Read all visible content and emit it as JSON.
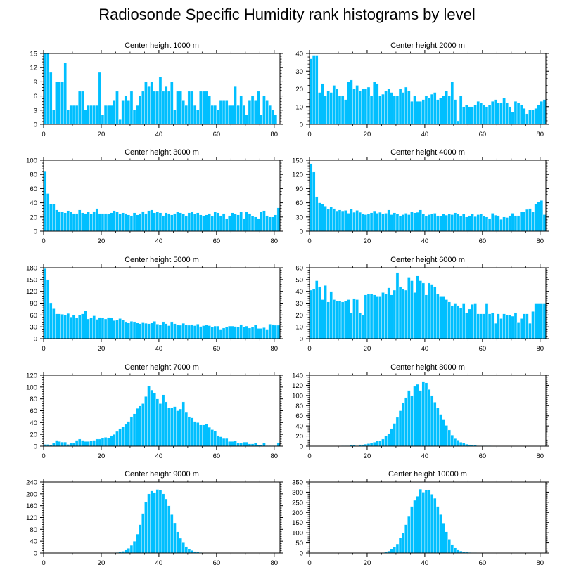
{
  "title": "Radiosonde Specific Humidity rank histograms by level",
  "colors": {
    "bar": "#00bfff",
    "bar_edge": "#ffffff",
    "axis": "#000000"
  },
  "chart_data": [
    {
      "type": "bar",
      "title": "Center height 1000 m",
      "xlim": [
        0,
        82
      ],
      "ylim": [
        0,
        15
      ],
      "yticks": [
        0,
        3,
        6,
        9,
        12,
        15
      ],
      "xticks": [
        0,
        20,
        40,
        60,
        80
      ],
      "values": [
        15,
        15,
        11,
        3,
        9,
        9,
        9,
        13,
        3,
        4,
        4,
        4,
        7,
        7,
        3,
        4,
        4,
        4,
        4,
        11,
        2,
        4,
        4,
        4,
        5,
        7,
        1,
        5,
        6,
        5,
        7,
        3,
        4,
        6,
        7,
        9,
        8,
        9,
        7,
        7,
        10,
        7,
        8,
        7,
        9,
        3,
        7,
        7,
        5,
        4,
        7,
        7,
        4,
        3,
        7,
        7,
        7,
        6,
        4,
        4,
        3,
        5,
        5,
        5,
        4,
        4,
        8,
        4,
        6,
        4,
        2,
        5,
        6,
        5,
        7,
        2,
        6,
        5,
        4,
        3,
        2
      ]
    },
    {
      "type": "bar",
      "title": "Center height 2000 m",
      "xlim": [
        0,
        82
      ],
      "ylim": [
        0,
        40
      ],
      "yticks": [
        0,
        10,
        20,
        30,
        40
      ],
      "xticks": [
        0,
        20,
        40,
        60,
        80
      ],
      "values": [
        37,
        39,
        39,
        18,
        23,
        16,
        19,
        18,
        22,
        20,
        16,
        16,
        14,
        24,
        25,
        20,
        22,
        19,
        20,
        20,
        21,
        16,
        24,
        23,
        16,
        17,
        19,
        20,
        18,
        16,
        16,
        20,
        18,
        21,
        19,
        13,
        16,
        13,
        13,
        14,
        16,
        15,
        17,
        18,
        14,
        15,
        16,
        19,
        16,
        24,
        14,
        2,
        16,
        10,
        11,
        10,
        10,
        11,
        13,
        12,
        11,
        10,
        11,
        13,
        14,
        12,
        12,
        15,
        12,
        10,
        7,
        13,
        12,
        11,
        9,
        6,
        8,
        8,
        9,
        11,
        13,
        14
      ]
    },
    {
      "type": "bar",
      "title": "Center height 3000 m",
      "xlim": [
        0,
        82
      ],
      "ylim": [
        0,
        100
      ],
      "yticks": [
        0,
        20,
        40,
        60,
        80,
        100
      ],
      "xticks": [
        0,
        20,
        40,
        60,
        80
      ],
      "values": [
        84,
        53,
        38,
        38,
        30,
        28,
        27,
        26,
        29,
        27,
        25,
        25,
        30,
        26,
        25,
        27,
        24,
        28,
        32,
        25,
        25,
        25,
        24,
        26,
        29,
        27,
        24,
        26,
        25,
        23,
        22,
        26,
        23,
        25,
        28,
        25,
        29,
        30,
        26,
        27,
        26,
        22,
        26,
        25,
        23,
        25,
        27,
        26,
        24,
        22,
        26,
        27,
        24,
        26,
        23,
        22,
        23,
        25,
        21,
        27,
        26,
        22,
        25,
        18,
        22,
        26,
        24,
        23,
        27,
        18,
        27,
        25,
        21,
        20,
        18,
        27,
        29,
        22,
        20,
        20,
        23,
        33
      ]
    },
    {
      "type": "bar",
      "title": "Center height 4000 m",
      "xlim": [
        0,
        82
      ],
      "ylim": [
        0,
        150
      ],
      "yticks": [
        0,
        30,
        60,
        90,
        120,
        150
      ],
      "xticks": [
        0,
        20,
        40,
        60,
        80
      ],
      "values": [
        143,
        125,
        73,
        60,
        57,
        53,
        47,
        51,
        48,
        43,
        45,
        43,
        44,
        38,
        47,
        40,
        44,
        40,
        36,
        35,
        37,
        39,
        43,
        38,
        40,
        36,
        38,
        45,
        35,
        39,
        36,
        33,
        35,
        38,
        35,
        41,
        39,
        40,
        45,
        37,
        33,
        35,
        37,
        38,
        33,
        32,
        36,
        34,
        37,
        35,
        39,
        36,
        33,
        37,
        30,
        33,
        37,
        31,
        35,
        37,
        32,
        30,
        27,
        38,
        34,
        33,
        25,
        30,
        29,
        33,
        38,
        33,
        33,
        41,
        41,
        46,
        48,
        41,
        57,
        62,
        65,
        35
      ]
    },
    {
      "type": "bar",
      "title": "Center height 5000 m",
      "xlim": [
        0,
        82
      ],
      "ylim": [
        0,
        180
      ],
      "yticks": [
        0,
        30,
        60,
        90,
        120,
        150,
        180
      ],
      "xticks": [
        0,
        20,
        40,
        60,
        80
      ],
      "values": [
        178,
        150,
        91,
        76,
        63,
        63,
        62,
        60,
        64,
        55,
        60,
        53,
        60,
        63,
        70,
        50,
        53,
        58,
        49,
        54,
        53,
        50,
        54,
        53,
        46,
        47,
        51,
        48,
        43,
        41,
        44,
        43,
        41,
        38,
        42,
        39,
        38,
        41,
        44,
        37,
        35,
        43,
        38,
        33,
        43,
        38,
        35,
        34,
        39,
        35,
        34,
        36,
        33,
        37,
        31,
        33,
        35,
        33,
        30,
        32,
        32,
        24,
        27,
        29,
        32,
        32,
        31,
        29,
        36,
        30,
        32,
        27,
        29,
        35,
        26,
        26,
        28,
        24,
        37,
        36,
        34,
        34
      ]
    },
    {
      "type": "bar",
      "title": "Center height 6000 m",
      "xlim": [
        0,
        82
      ],
      "ylim": [
        0,
        60
      ],
      "yticks": [
        0,
        10,
        20,
        30,
        40,
        50,
        60
      ],
      "xticks": [
        0,
        20,
        40,
        60,
        80
      ],
      "values": [
        41,
        42,
        49,
        44,
        33,
        45,
        31,
        40,
        33,
        32,
        32,
        31,
        32,
        33,
        22,
        34,
        33,
        22,
        20,
        37,
        38,
        38,
        37,
        36,
        36,
        39,
        38,
        43,
        37,
        41,
        56,
        44,
        42,
        41,
        52,
        49,
        39,
        53,
        49,
        47,
        37,
        47,
        46,
        44,
        38,
        36,
        36,
        33,
        31,
        28,
        30,
        28,
        26,
        30,
        22,
        25,
        29,
        30,
        21,
        21,
        21,
        30,
        21,
        22,
        13,
        21,
        17,
        21,
        20,
        20,
        19,
        22,
        14,
        17,
        21,
        21,
        13,
        23,
        30,
        30,
        30,
        30
      ]
    },
    {
      "type": "bar",
      "title": "Center height 7000 m",
      "xlim": [
        0,
        82
      ],
      "ylim": [
        0,
        120
      ],
      "yticks": [
        0,
        20,
        40,
        60,
        80,
        100,
        120
      ],
      "xticks": [
        0,
        20,
        40,
        60,
        80
      ],
      "values": [
        3,
        3,
        2,
        5,
        10,
        8,
        7,
        7,
        3,
        5,
        6,
        10,
        12,
        10,
        8,
        8,
        9,
        10,
        12,
        12,
        14,
        15,
        14,
        18,
        20,
        25,
        30,
        33,
        37,
        42,
        50,
        55,
        64,
        68,
        72,
        84,
        102,
        95,
        90,
        80,
        72,
        87,
        75,
        65,
        65,
        67,
        60,
        63,
        75,
        57,
        50,
        48,
        42,
        40,
        36,
        36,
        38,
        32,
        28,
        26,
        18,
        16,
        13,
        13,
        8,
        8,
        9,
        5,
        5,
        7,
        7,
        4,
        4,
        5,
        2,
        2,
        5,
        1,
        1,
        1,
        1,
        6
      ]
    },
    {
      "type": "bar",
      "title": "Center height 8000 m",
      "xlim": [
        0,
        82
      ],
      "ylim": [
        0,
        140
      ],
      "yticks": [
        0,
        20,
        40,
        60,
        80,
        100,
        120,
        140
      ],
      "xticks": [
        0,
        20,
        40,
        60,
        80
      ],
      "values": [
        0,
        0,
        0,
        0,
        0,
        0,
        0,
        0,
        0,
        0,
        0,
        1,
        1,
        1,
        2,
        2,
        1,
        3,
        3,
        4,
        5,
        6,
        8,
        10,
        11,
        14,
        20,
        25,
        35,
        45,
        57,
        70,
        86,
        96,
        110,
        100,
        118,
        122,
        110,
        128,
        125,
        112,
        100,
        87,
        76,
        63,
        52,
        41,
        32,
        22,
        15,
        12,
        8,
        6,
        4,
        3,
        2,
        2,
        1,
        1,
        1,
        1,
        1,
        0,
        0,
        0,
        0,
        0,
        0,
        0,
        0,
        0,
        0,
        0,
        0,
        0,
        0,
        0,
        0,
        0,
        0,
        0
      ]
    },
    {
      "type": "bar",
      "title": "Center height 9000 m",
      "xlim": [
        0,
        82
      ],
      "ylim": [
        0,
        240
      ],
      "yticks": [
        0,
        40,
        80,
        120,
        160,
        200,
        240
      ],
      "xticks": [
        0,
        20,
        40,
        60,
        80
      ],
      "values": [
        0,
        0,
        0,
        0,
        0,
        0,
        0,
        0,
        0,
        0,
        0,
        0,
        0,
        0,
        0,
        0,
        0,
        0,
        0,
        0,
        0,
        0,
        0,
        0,
        1,
        2,
        3,
        6,
        10,
        16,
        26,
        40,
        64,
        96,
        134,
        172,
        200,
        210,
        205,
        215,
        212,
        200,
        183,
        160,
        130,
        100,
        72,
        50,
        35,
        22,
        14,
        9,
        5,
        3,
        2,
        1,
        1,
        0,
        0,
        0,
        0,
        0,
        0,
        0,
        0,
        0,
        0,
        0,
        0,
        0,
        0,
        0,
        0,
        0,
        0,
        0,
        0,
        0,
        0,
        0,
        0,
        0
      ]
    },
    {
      "type": "bar",
      "title": "Center height 10000 m",
      "xlim": [
        0,
        82
      ],
      "ylim": [
        0,
        350
      ],
      "yticks": [
        0,
        50,
        100,
        150,
        200,
        250,
        300,
        350
      ],
      "xticks": [
        0,
        20,
        40,
        60,
        80
      ],
      "values": [
        0,
        0,
        0,
        0,
        0,
        0,
        0,
        0,
        0,
        0,
        0,
        0,
        0,
        0,
        0,
        0,
        0,
        0,
        0,
        0,
        0,
        0,
        0,
        0,
        1,
        2,
        5,
        10,
        18,
        30,
        45,
        75,
        100,
        140,
        180,
        230,
        260,
        280,
        315,
        300,
        310,
        312,
        290,
        270,
        230,
        190,
        145,
        105,
        68,
        42,
        25,
        15,
        10,
        6,
        4,
        3,
        2,
        2,
        1,
        1,
        1,
        0,
        0,
        0,
        0,
        0,
        0,
        0,
        0,
        0,
        0,
        0,
        0,
        0,
        0,
        0,
        0,
        0,
        0,
        0,
        0,
        0
      ]
    }
  ]
}
